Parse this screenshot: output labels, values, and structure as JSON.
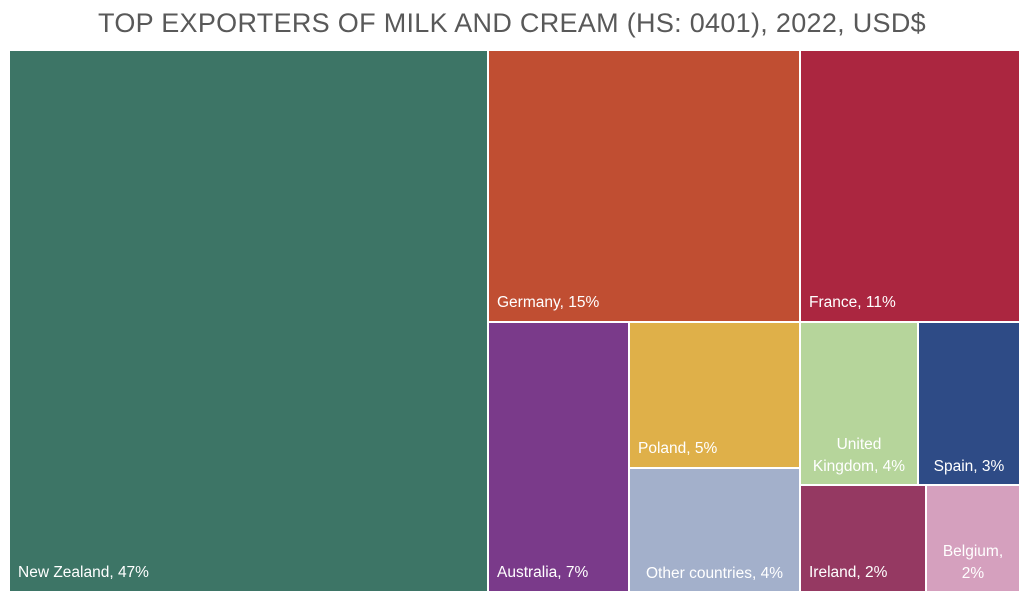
{
  "chart_data": {
    "type": "treemap",
    "title": "TOP EXPORTERS OF MILK AND CREAM (HS: 0401), 2022, USD$",
    "items": [
      {
        "name": "New Zealand",
        "label": "New Zealand, 47%",
        "value": 47,
        "color": "#3D7566"
      },
      {
        "name": "Germany",
        "label": "Germany, 15%",
        "value": 15,
        "color": "#C04E32"
      },
      {
        "name": "France",
        "label": "France, 11%",
        "value": 11,
        "color": "#AB2640"
      },
      {
        "name": "Australia",
        "label": "Australia, 7%",
        "value": 7,
        "color": "#7A3A8A"
      },
      {
        "name": "Poland",
        "label": "Poland, 5%",
        "value": 5,
        "color": "#DFB049"
      },
      {
        "name": "Other countries",
        "label": "Other countries, 4%",
        "value": 4,
        "color": "#A3B0CB"
      },
      {
        "name": "United Kingdom",
        "label": "United Kingdom, 4%",
        "value": 4,
        "color": "#B6D59B"
      },
      {
        "name": "Spain",
        "label": "Spain, 3%",
        "value": 3,
        "color": "#2E4B86"
      },
      {
        "name": "Ireland",
        "label": "Ireland, 2%",
        "value": 2,
        "color": "#953962"
      },
      {
        "name": "Belgium",
        "label": "Belgium, 2%",
        "value": 2,
        "color": "#D5A0BE"
      }
    ]
  }
}
